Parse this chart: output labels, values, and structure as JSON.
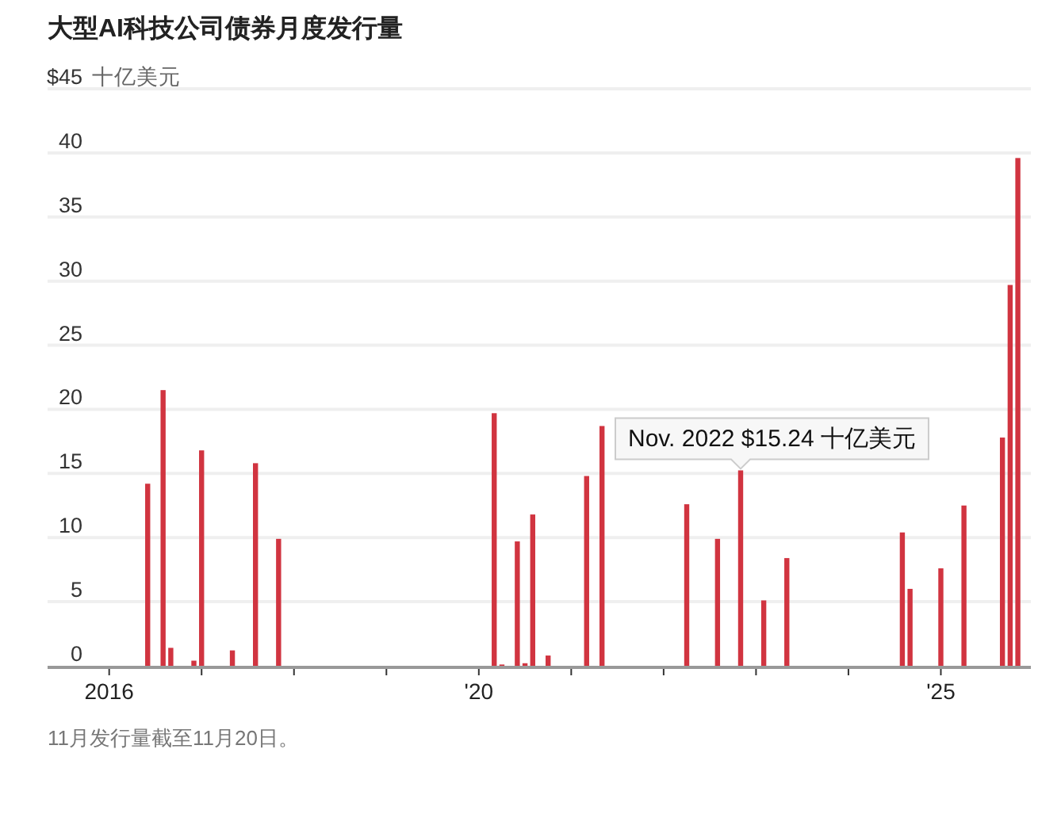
{
  "chart_data": {
    "type": "bar",
    "title": "大型AI科技公司债券月度发行量",
    "ylabel": "十亿美元",
    "x": [
      "2016-06",
      "2016-08",
      "2016-09",
      "2016-12",
      "2017-01",
      "2017-05",
      "2017-08",
      "2017-11",
      "2020-03",
      "2020-04",
      "2020-06",
      "2020-07",
      "2020-08",
      "2020-10",
      "2021-03",
      "2021-05",
      "2022-04",
      "2022-08",
      "2022-11",
      "2023-02",
      "2023-05",
      "2024-08",
      "2024-09",
      "2025-01",
      "2025-04",
      "2025-09",
      "2025-10",
      "2025-11"
    ],
    "values": [
      14.2,
      21.5,
      1.4,
      0.4,
      16.8,
      1.2,
      15.8,
      9.9,
      19.7,
      0.1,
      9.7,
      0.2,
      11.8,
      0.8,
      14.8,
      18.7,
      12.6,
      9.9,
      15.24,
      5.1,
      8.4,
      10.4,
      6.0,
      7.6,
      12.5,
      17.8,
      29.7,
      39.6
    ],
    "color": "#d13440",
    "xlim": [
      "2015-05",
      "2025-12-22"
    ],
    "ylim": [
      0,
      45
    ],
    "xticks": [
      {
        "value": "2016",
        "label": "2016"
      },
      {
        "value": "2017",
        "label": null
      },
      {
        "value": "2018",
        "label": null
      },
      {
        "value": "2019",
        "label": null
      },
      {
        "value": "2020",
        "label": "'20"
      },
      {
        "value": "2021",
        "label": null
      },
      {
        "value": "2022",
        "label": null
      },
      {
        "value": "2023",
        "label": null
      },
      {
        "value": "2024",
        "label": null
      },
      {
        "value": "2025",
        "label": "'25"
      }
    ],
    "yticks": [
      0,
      5,
      10,
      15,
      20,
      25,
      30,
      35,
      40,
      {
        "value": 45,
        "label": "$45"
      }
    ],
    "grid": "y",
    "annotations": [
      {
        "text": "Nov. 2022 $15.24 十亿美元",
        "x": "2022-11",
        "y": 15.24
      },
      "11月发行量截至11月20日。"
    ]
  }
}
